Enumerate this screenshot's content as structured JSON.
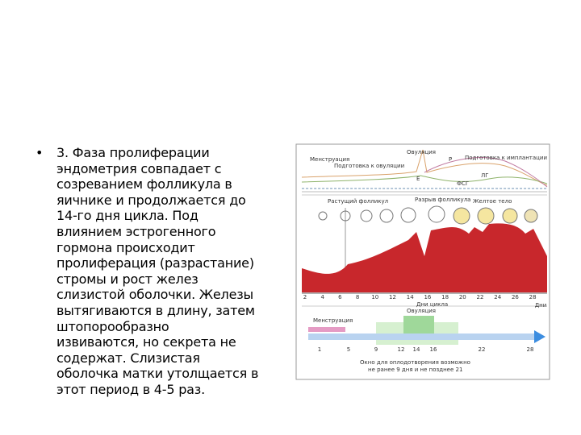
{
  "slide": {
    "bullet_lines": [
      "3. Фаза пролиферации",
      "эндометрия совпадает с",
      "созреванием фолликула в",
      "яичнике и продолжается до",
      "14-го дня цикла. Под",
      "влиянием эстрогенного",
      "гормона происходит",
      "пролиферация (разрастание)",
      "стромы и рост желез",
      "слизистой оболочки. Железы",
      "вытягиваются в длину, затем",
      "штопорообразно",
      "извиваются, но секрета не",
      "содержат. Слизистая",
      "оболочка матки утолщается в",
      "этот период в 4-5 раз."
    ],
    "diagram": {
      "hormones": {
        "menstruation": "Менструация",
        "ovulation": "Овуляция",
        "prep_ovulation": "Подготовка к овуляции",
        "prep_implantation": "Подготовка к имплантации",
        "p": "P",
        "e": "Е",
        "lh": "ЛГ",
        "fsh": "ФСГ"
      },
      "ovary": {
        "growing": "Растущий фолликул",
        "rupture": "Разрыв фолликула",
        "corpus": "Желтое тело"
      },
      "days": [
        "2",
        "4",
        "6",
        "8",
        "10",
        "12",
        "14",
        "16",
        "18",
        "20",
        "22",
        "24",
        "26",
        "28"
      ],
      "days_unit": "Дни",
      "days_caption": "Дни цикла",
      "timeline": {
        "menstruation": "Менструация",
        "ovulation": "Овуляция",
        "numbers": [
          "1",
          "5",
          "9",
          "12",
          "14",
          "16",
          "22",
          "28"
        ],
        "caption_1": "Окно для оплодотворения возможно",
        "caption_2": "не ранее 9 дня и не позднее 21"
      }
    }
  }
}
